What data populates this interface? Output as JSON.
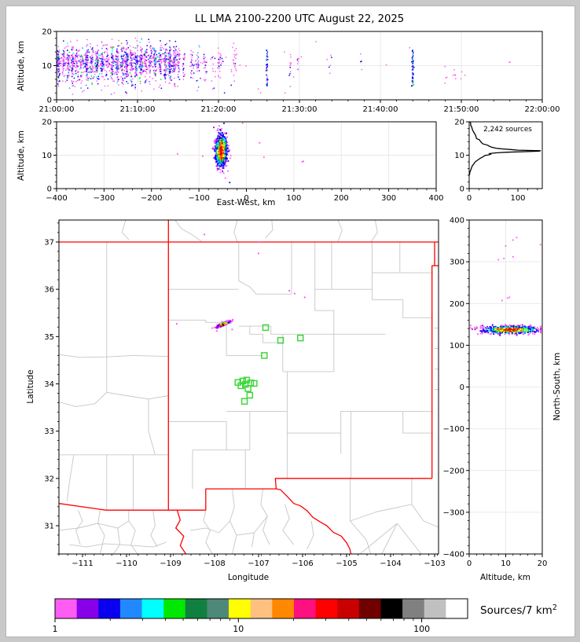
{
  "frame": {
    "outer_bg": "#c9c9c9",
    "figure_bg": "#ffffff"
  },
  "title": "LL LMA 2100-2200 UTC August 22, 2025",
  "colors": {
    "state_border": "#ff0000",
    "county_line": "#c6c6c6",
    "grid_line": "#e9e9e9",
    "station": "#3fd63f",
    "histogram_line": "#000000",
    "spine": "#000000",
    "magenta": "#ff5cf4",
    "blue": "#0a00f0"
  },
  "palette": [
    "#ff5cf4",
    "#8800e8",
    "#0a00f0",
    "#2288ff",
    "#00ffff",
    "#00e800",
    "#108040",
    "#4e8878",
    "#ffff00",
    "#ffc080",
    "#ff8800",
    "#ff1080",
    "#ff0000",
    "#c80000",
    "#700000",
    "#000000",
    "#808080",
    "#c0c0c0",
    "#ffffff"
  ],
  "chart_data": [
    {
      "id": "time_altitude",
      "type": "scatter",
      "ylabel": "Altitude, km",
      "xlim": [
        0,
        3600
      ],
      "ylim": [
        0,
        20
      ],
      "xtick_values": [
        0,
        600,
        1200,
        1800,
        2400,
        3000,
        3600
      ],
      "xtick_labels": [
        "21:00:00",
        "21:10:00",
        "21:20:00",
        "21:30:00",
        "21:40:00",
        "21:50:00",
        "22:00:00"
      ],
      "ytick_values": [
        0,
        10,
        20
      ],
      "ytick_labels": [
        "0",
        "10",
        "20"
      ],
      "stripes": [
        [
          15,
          80,
          1
        ],
        [
          50,
          45,
          0
        ],
        [
          85,
          60,
          1
        ],
        [
          120,
          70,
          1
        ],
        [
          150,
          40,
          0
        ],
        [
          185,
          55,
          1
        ],
        [
          225,
          85,
          1
        ],
        [
          262,
          50,
          1
        ],
        [
          300,
          65,
          1
        ],
        [
          338,
          70,
          1
        ],
        [
          375,
          45,
          0
        ],
        [
          412,
          65,
          1
        ],
        [
          450,
          85,
          1
        ],
        [
          488,
          55,
          1
        ],
        [
          520,
          100,
          1
        ],
        [
          555,
          65,
          1
        ],
        [
          590,
          75,
          1
        ],
        [
          625,
          85,
          1
        ],
        [
          660,
          55,
          1
        ],
        [
          695,
          45,
          0
        ],
        [
          730,
          65,
          1
        ],
        [
          768,
          55,
          1
        ],
        [
          805,
          75,
          1
        ],
        [
          840,
          95,
          1
        ],
        [
          875,
          55,
          1
        ],
        [
          905,
          35,
          0
        ],
        [
          945,
          25,
          0
        ],
        [
          1000,
          22,
          0
        ],
        [
          1048,
          28,
          1
        ],
        [
          1098,
          18,
          0
        ],
        [
          1160,
          12,
          0
        ],
        [
          1205,
          28,
          0
        ],
        [
          1322,
          22,
          0
        ],
        [
          1560,
          40,
          2
        ],
        [
          1728,
          10,
          0
        ],
        [
          1790,
          8,
          0
        ],
        [
          2022,
          5,
          0
        ],
        [
          2258,
          4,
          0
        ],
        [
          2640,
          48,
          2
        ],
        [
          2892,
          4,
          3
        ],
        [
          2958,
          5,
          3
        ],
        [
          3010,
          3,
          3
        ],
        [
          3362,
          2,
          0
        ]
      ],
      "noise_n": 60
    },
    {
      "id": "ew_altitude",
      "type": "scatter",
      "ylabel": "Altitude, km",
      "xlabel": "East-West, km",
      "xlim": [
        -400,
        400
      ],
      "ylim": [
        0,
        20
      ],
      "xtick_values": [
        -400,
        -300,
        -200,
        -100,
        0,
        100,
        200,
        300,
        400
      ],
      "xtick_labels": [
        "−400",
        "−300",
        "−200",
        "−100",
        "0",
        "100",
        "200",
        "300",
        "400"
      ],
      "ytick_values": [
        0,
        10,
        20
      ],
      "ytick_labels": [
        "0",
        "10",
        "20"
      ],
      "cluster": {
        "cx": -53,
        "sx": 6.5,
        "calt": 11.3,
        "salt": 2.6,
        "n": 850
      },
      "strays": [
        [
          -145,
          10.4
        ],
        [
          -92,
          9.7
        ],
        [
          28,
          13.7
        ],
        [
          37,
          9.4
        ],
        [
          120,
          8.2
        ],
        [
          118,
          8.0
        ],
        [
          -8,
          19.6
        ]
      ]
    },
    {
      "id": "alt_histogram",
      "type": "line",
      "annotation": "2,242 sources",
      "xlim": [
        0,
        150
      ],
      "ylim": [
        0,
        20
      ],
      "xtick_values": [
        0,
        100
      ],
      "xtick_labels": [
        "0",
        "100"
      ],
      "ytick_values": [
        0,
        10,
        20
      ],
      "ytick_labels": [
        "0",
        "10",
        "20"
      ],
      "points": [
        [
          20,
          2
        ],
        [
          19.5,
          3
        ],
        [
          19,
          3
        ],
        [
          18.5,
          5
        ],
        [
          18,
          6
        ],
        [
          17.5,
          7
        ],
        [
          17,
          9
        ],
        [
          16.5,
          11
        ],
        [
          16,
          13
        ],
        [
          15.5,
          14
        ],
        [
          15,
          15
        ],
        [
          14.6,
          21
        ],
        [
          14.2,
          23
        ],
        [
          13.8,
          25
        ],
        [
          13.4,
          28
        ],
        [
          13,
          38
        ],
        [
          12.7,
          41
        ],
        [
          12.4,
          46
        ],
        [
          12.1,
          55
        ],
        [
          11.9,
          66
        ],
        [
          11.7,
          85
        ],
        [
          11.5,
          100
        ],
        [
          11.35,
          147
        ],
        [
          11.2,
          143
        ],
        [
          11.05,
          115
        ],
        [
          10.9,
          78
        ],
        [
          10.7,
          55
        ],
        [
          10.5,
          42
        ],
        [
          10.3,
          44
        ],
        [
          10.1,
          40
        ],
        [
          9.9,
          32
        ],
        [
          9.7,
          30
        ],
        [
          9.4,
          27
        ],
        [
          9.1,
          23
        ],
        [
          8.8,
          20
        ],
        [
          8.5,
          17
        ],
        [
          8.2,
          14
        ],
        [
          7.9,
          12
        ],
        [
          7.5,
          10
        ],
        [
          7.1,
          8
        ],
        [
          6.7,
          6
        ],
        [
          6.3,
          5
        ],
        [
          5.9,
          4
        ],
        [
          5.5,
          3
        ],
        [
          5.1,
          2
        ],
        [
          4.7,
          1
        ],
        [
          4.3,
          1
        ],
        [
          4,
          0
        ]
      ]
    },
    {
      "id": "map",
      "type": "scatter",
      "xlabel": "Longitude",
      "ylabel": "Latitude",
      "xlim": [
        -111.536,
        -102.911
      ],
      "ylim": [
        30.402,
        37.465
      ],
      "xtick_values": [
        -111,
        -110,
        -109,
        -108,
        -107,
        -106,
        -105,
        -104,
        -103
      ],
      "xtick_labels": [
        "−111",
        "−110",
        "−109",
        "−108",
        "−107",
        "−106",
        "−105",
        "−104",
        "−103"
      ],
      "ytick_values": [
        31,
        32,
        33,
        34,
        35,
        36,
        37
      ],
      "ytick_labels": [
        "31",
        "32",
        "33",
        "34",
        "35",
        "36",
        "37"
      ],
      "cluster": {
        "cx": -107.8,
        "cy": 35.26,
        "slen": 0.09,
        "swid": 0.018,
        "angle_deg": 27,
        "n": 140
      },
      "strays": [
        [
          -108.86,
          35.27
        ],
        [
          -108.05,
          35.18
        ],
        [
          -107.95,
          35.12
        ],
        [
          -107.6,
          35.15
        ],
        [
          -108.23,
          37.16
        ],
        [
          -106.98,
          37.0
        ],
        [
          -107.0,
          36.76
        ],
        [
          -105.95,
          35.83
        ],
        [
          -106.3,
          35.97
        ],
        [
          -106.18,
          35.91
        ]
      ],
      "stations": [
        [
          -107.47,
          34.03
        ],
        [
          -107.36,
          34.06
        ],
        [
          -107.27,
          34.08
        ],
        [
          -107.18,
          34.02
        ],
        [
          -107.3,
          33.99
        ],
        [
          -107.4,
          33.96
        ],
        [
          -107.1,
          34.01
        ],
        [
          -107.24,
          33.9
        ],
        [
          -107.2,
          33.76
        ],
        [
          -107.32,
          33.63
        ],
        [
          -106.84,
          35.19
        ],
        [
          -106.5,
          34.92
        ],
        [
          -106.05,
          34.97
        ],
        [
          -106.87,
          34.6
        ]
      ],
      "state_borders": [
        "-111.536,37 -102.911,37",
        "-109.048,37.465 -109.048,31.33",
        "-111.536,31.47 -110.47,31.33 -108.2,31.33",
        "-108.2,31.33 -108.2,31.78 -106.6,31.78",
        "-106.6,31.78 -106.62,32.0 -103.06,32.0",
        "-103.06,32.0 -103.06,36.5 -103.0,36.5 -103.0,37.0",
        "-103.0,36.5 -102.911,36.5",
        "-108.85,31.33 -108.78,31.12 -108.88,30.95 -108.7,30.78 -108.78,30.58 -108.65,30.402",
        "-106.6,31.78 -106.5,31.76 -106.35,31.62 -106.2,31.47 -106.05,31.42 -105.9,31.32 -105.77,31.18 -105.6,31.08 -105.45,31.0 -105.3,30.86 -105.12,30.78 -105.0,30.64 -104.93,30.52 -104.9,30.402"
      ],
      "county_lines": [
        "-110.45,37 -110.45,34.57",
        "-111.54,34.62 -111.05,34.56 -110.45,34.57",
        "-110.45,34.57 -109.86,34.6 -109.05,34.58",
        "-111.54,33.62 -111.15,33.52 -110.72,33.58 -110.45,33.82",
        "-110.45,34.57 -110.45,33.82",
        "-110.45,33.82 -110.0,33.75 -109.5,33.68 -109.05,33.75",
        "-109.5,33.68 -109.5,33.0 -109.35,32.5",
        "-111.54,32.5 -109.05,32.5",
        "-110.45,32.5 -110.45,31.33",
        "-109.85,32.5 -109.85,31.33",
        "-111.2,32.5 -111.3,31.9 -111.35,31.52",
        "-109.05,36.0 -107.45,36.0",
        "-107.45,37 -107.45,36.18 -107.2,36.05 -107.05,35.9",
        "-107.05,35.9 -106.25,35.9",
        "-106.25,37 -106.25,35.9",
        "-105.72,37 -105.72,35.55",
        "-105.34,37 -105.34,36.0",
        "-105.72,36.0 -104.42,36.0",
        "-104.42,37 -104.42,35.78",
        "-103.79,37 -103.79,36.35",
        "-104.42,36.35 -103.04,36.35",
        "-104.42,35.78 -103.72,35.78 -103.72,35.4 -103.04,35.4",
        "-109.05,35.35 -108.2,35.35 -108.2,35.3 -107.73,35.3",
        "-107.73,35.3 -107.73,34.6",
        "-107.45,35.22 -107.2,35.22",
        "-107.2,35.22 -106.72,35.22 -106.72,35.05 -106.45,35.05 -106.45,34.87 -106.9,34.87 -106.9,35.05 -107.2,35.05 -107.2,35.22",
        "-106.45,35.05 -104.12,35.05",
        "-105.72,35.55 -105.29,35.55 -105.29,34.26",
        "-106.45,34.87 -106.45,34.26",
        "-106.45,34.26 -105.29,34.26",
        "-107.73,34.6 -106.9,34.6",
        "-109.05,33.2 -107.73,33.2",
        "-107.73,33.42 -106.35,33.42",
        "-106.35,34.26 -106.35,32.0",
        "-106.35,32.96 -105.13,32.96",
        "-105.13,33.42 -105.13,32.52",
        "-105.13,33.42 -103.04,33.42",
        "-103.72,33.42 -103.72,32.96 -103.04,32.96",
        "-104.9,33.42 -104.9,32.0",
        "-107.73,33.2 -107.73,32.6",
        "-108.5,32.6 -107.2,32.6",
        "-108.5,32.6 -108.5,31.78",
        "-107.3,32.6 -107.3,31.78",
        "-107.2,33.42 -107.2,32.6",
        "-103.0,35.18 -102.87,35.18",
        "-103.0,34.75 -102.87,34.75",
        "-103.0,34.31 -102.87,34.31",
        "-103.0,33.88 -102.87,33.88",
        "-103.52,32.0 -103.52,31.45 -103.25,31.1 -102.87,30.95",
        "-104.92,32.0 -104.92,31.1 -104.55,30.7 -104.45,30.4",
        "-104.92,31.1 -104.3,31.3 -103.52,31.45",
        "-104.7,30.4 -103.85,31.05",
        "-104.2,30.4 -103.85,31.05",
        "-103.85,31.05 -103.3,30.4",
        "-111.1,31.33 -111.0,31.1 -111.15,30.9 -111.05,30.6",
        "-110.6,31.33 -110.65,31.05 -110.5,30.8 -110.6,30.4",
        "-111.54,30.9 -111.1,30.95 -110.65,31.05 -110.2,30.95 -109.95,31.1",
        "-110.2,30.95 -110.15,30.6 -110.3,30.4",
        "-109.95,31.33 -109.95,31.1 -109.8,30.9 -109.9,30.6 -109.75,30.4",
        "-111.3,30.6 -110.9,30.55 -110.5,30.62 -110.15,30.6 -109.4,30.55 -109.1,30.65",
        "-109.4,31.33 -109.35,31.0 -109.45,30.8 -109.3,30.55",
        "-108.2,31.33 -108.25,31.1 -108.1,30.9 -108.2,30.65 -108.05,30.4",
        "-108.55,30.9 -108.2,30.95 -107.9,30.85 -107.65,31.1",
        "-107.6,31.78 -107.55,31.4 -107.65,31.1 -107.5,30.8 -107.6,30.4",
        "-107.5,30.8 -107.1,30.85 -106.8,31.2",
        "-107.1,30.85 -107.15,30.55",
        "-106.9,31.78 -106.95,31.45 -106.8,31.2 -106.9,30.9 -106.75,30.6",
        "-106.4,31.45 -106.3,31.15 -106.45,30.9 -106.2,30.6",
        "-105.8,31.1 -105.75,30.8 -105.9,30.5",
        "-110.02,37.47 -110.1,37.2 -109.95,37.05",
        "-108.9,37.47 -108.75,37.28 -108.5,37.15 -108.28,37.0",
        "-107.48,37.47 -107.56,37.2 -107.48,37.0",
        "-106.7,37.47 -106.68,37.25 -106.85,37.08",
        "-105.2,37.47 -105.1,37.25 -105.2,37.0",
        "-104.35,37.47 -104.3,37.2 -104.45,37.0"
      ]
    },
    {
      "id": "ns_altitude",
      "type": "scatter",
      "xlabel": "Altitude, km",
      "ylabel": "North-South, km",
      "xlim": [
        0,
        20
      ],
      "ylim": [
        -400,
        400
      ],
      "xtick_values": [
        0,
        10,
        20
      ],
      "xtick_labels": [
        "0",
        "10",
        "20"
      ],
      "ytick_values": [
        400,
        300,
        200,
        100,
        0,
        -100,
        -200,
        -300,
        -400
      ],
      "ytick_labels": [
        "400",
        "300",
        "200",
        "100",
        "0",
        "−100",
        "−200",
        "−300",
        "−400"
      ],
      "cluster": {
        "cy": 137,
        "sy": 4.5,
        "calt": 11.3,
        "salt": 4.0,
        "n": 700
      },
      "strays": [
        [
          9,
          207
        ],
        [
          10.5,
          213
        ],
        [
          11,
          215
        ],
        [
          8,
          305
        ],
        [
          9.5,
          308
        ],
        [
          12,
          312
        ],
        [
          10,
          338
        ],
        [
          12,
          352
        ],
        [
          13,
          358
        ],
        [
          19.5,
          341
        ],
        [
          2,
          140
        ],
        [
          19,
          137
        ]
      ]
    },
    {
      "id": "colorbar",
      "type": "colorbar",
      "scale": "log",
      "range": [
        1,
        178
      ],
      "n_cells": 19,
      "tick_values": [
        1,
        10,
        100
      ],
      "tick_labels": [
        "1",
        "10",
        "100"
      ],
      "minor_tick_values": [
        2,
        3,
        4,
        5,
        6,
        7,
        8,
        9,
        20,
        30,
        40,
        50,
        60,
        70,
        80,
        90
      ],
      "label": "Sources/7 km",
      "label_sup": "2"
    }
  ]
}
